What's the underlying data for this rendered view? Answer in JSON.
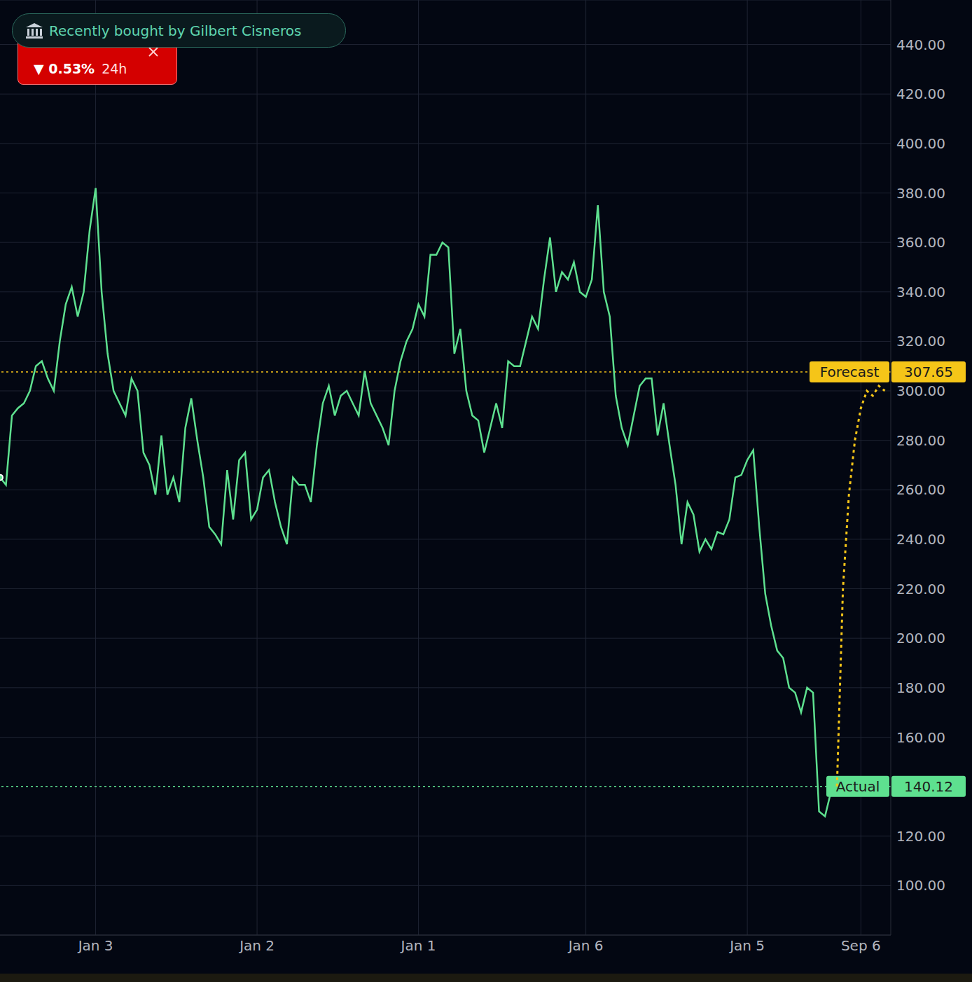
{
  "chart_data": {
    "type": "line",
    "categories": [
      null,
      null,
      null,
      null,
      null,
      null,
      null,
      null,
      null,
      null,
      null,
      null,
      null,
      null,
      null,
      null,
      "Jan 3",
      null,
      null,
      null,
      null,
      null,
      null,
      null,
      null,
      null,
      null,
      null,
      null,
      null,
      null,
      null,
      null,
      null,
      null,
      null,
      null,
      null,
      null,
      null,
      null,
      null,
      null,
      "Jan 2",
      null,
      null,
      null,
      null,
      null,
      null,
      null,
      null,
      null,
      null,
      null,
      null,
      null,
      null,
      null,
      null,
      null,
      null,
      null,
      null,
      null,
      null,
      null,
      null,
      null,
      null,
      "Jan 1",
      null,
      null,
      null,
      null,
      null,
      null,
      null,
      null,
      null,
      null,
      null,
      null,
      null,
      null,
      null,
      null,
      null,
      null,
      null,
      null,
      null,
      null,
      null,
      null,
      null,
      null,
      null,
      "Jan 6",
      null,
      null,
      null,
      null,
      null,
      null,
      null,
      null,
      null,
      null,
      null,
      null,
      null,
      null,
      null,
      null,
      null,
      null,
      null,
      null,
      null,
      null,
      null,
      null,
      null,
      null,
      "Jan 5",
      null,
      null,
      null,
      null,
      null,
      null,
      null,
      null,
      null,
      null,
      null,
      null,
      null,
      null,
      null,
      null,
      null,
      null,
      "Sep 6",
      null,
      null,
      null,
      null,
      null
    ],
    "series": [
      {
        "name": "Actual",
        "color": "#5ee08f",
        "line_style": "solid",
        "values": [
          265,
          262,
          290,
          293,
          295,
          300,
          310,
          312,
          305,
          300,
          320,
          335,
          342,
          330,
          340,
          365,
          382,
          340,
          315,
          300,
          295,
          290,
          305,
          300,
          275,
          270,
          258,
          282,
          258,
          265,
          255,
          285,
          297,
          280,
          265,
          245,
          242,
          238,
          268,
          248,
          272,
          275,
          248,
          252,
          265,
          268,
          255,
          245,
          238,
          265,
          262,
          262,
          255,
          278,
          295,
          302,
          290,
          298,
          300,
          295,
          290,
          308,
          295,
          290,
          285,
          278,
          300,
          312,
          320,
          325,
          335,
          330,
          355,
          355,
          360,
          358,
          315,
          325,
          300,
          290,
          288,
          275,
          285,
          295,
          285,
          312,
          310,
          310,
          320,
          330,
          325,
          345,
          362,
          340,
          348,
          345,
          352,
          340,
          338,
          345,
          375,
          340,
          330,
          298,
          285,
          278,
          290,
          302,
          305,
          305,
          282,
          295,
          278,
          262,
          238,
          255,
          250,
          235,
          240,
          236,
          243,
          242,
          248,
          265,
          266,
          272,
          276,
          245,
          218,
          205,
          195,
          192,
          180,
          178,
          170,
          180,
          178,
          130,
          128,
          138,
          140.12,
          null,
          null,
          null,
          null,
          null,
          null,
          null,
          null,
          null
        ]
      },
      {
        "name": "Forecast",
        "color": "#f5c518",
        "line_style": "dotted",
        "values": [
          null,
          null,
          null,
          null,
          null,
          null,
          null,
          null,
          null,
          null,
          null,
          null,
          null,
          null,
          null,
          null,
          null,
          null,
          null,
          null,
          null,
          null,
          null,
          null,
          null,
          null,
          null,
          null,
          null,
          null,
          null,
          null,
          null,
          null,
          null,
          null,
          null,
          null,
          null,
          null,
          null,
          null,
          null,
          null,
          null,
          null,
          null,
          null,
          null,
          null,
          null,
          null,
          null,
          null,
          null,
          null,
          null,
          null,
          null,
          null,
          null,
          null,
          null,
          null,
          null,
          null,
          null,
          null,
          null,
          null,
          null,
          null,
          null,
          null,
          null,
          null,
          null,
          null,
          null,
          null,
          null,
          null,
          null,
          null,
          null,
          null,
          null,
          null,
          null,
          null,
          null,
          null,
          null,
          null,
          null,
          null,
          null,
          null,
          null,
          null,
          null,
          null,
          null,
          null,
          null,
          null,
          null,
          null,
          null,
          null,
          null,
          null,
          null,
          null,
          null,
          null,
          null,
          null,
          null,
          null,
          null,
          null,
          null,
          null,
          null,
          null,
          null,
          null,
          null,
          null,
          null,
          null,
          null,
          null,
          null,
          null,
          null,
          null,
          null,
          null,
          140.12,
          220,
          258,
          280,
          293,
          300,
          298,
          302,
          300,
          null
        ]
      }
    ],
    "ylim": [
      80,
      458
    ],
    "yticks": [
      {
        "value": 100,
        "label": "100.00"
      },
      {
        "value": 120,
        "label": "120.00"
      },
      {
        "value": 160,
        "label": "160.00"
      },
      {
        "value": 180,
        "label": "180.00"
      },
      {
        "value": 200,
        "label": "200.00"
      },
      {
        "value": 220,
        "label": "220.00"
      },
      {
        "value": 240,
        "label": "240.00"
      },
      {
        "value": 260,
        "label": "260.00"
      },
      {
        "value": 280,
        "label": "280.00"
      },
      {
        "value": 300,
        "label": "300.00"
      },
      {
        "value": 320,
        "label": "320.00"
      },
      {
        "value": 340,
        "label": "340.00"
      },
      {
        "value": 360,
        "label": "360.00"
      },
      {
        "value": 380,
        "label": "380.00"
      },
      {
        "value": 400,
        "label": "400.00"
      },
      {
        "value": 420,
        "label": "420.00"
      },
      {
        "value": 440,
        "label": "440.00"
      }
    ],
    "grid": true,
    "annotations": [
      {
        "label": "Forecast",
        "value": 307.65,
        "color": "#f5c518"
      },
      {
        "label": "Actual",
        "value": 140.12,
        "color": "#5ee08f"
      }
    ]
  },
  "overlay": {
    "badge": "Recently bought by Gilbert Cisneros",
    "change": "▼ 0.53%",
    "period": "24h"
  }
}
